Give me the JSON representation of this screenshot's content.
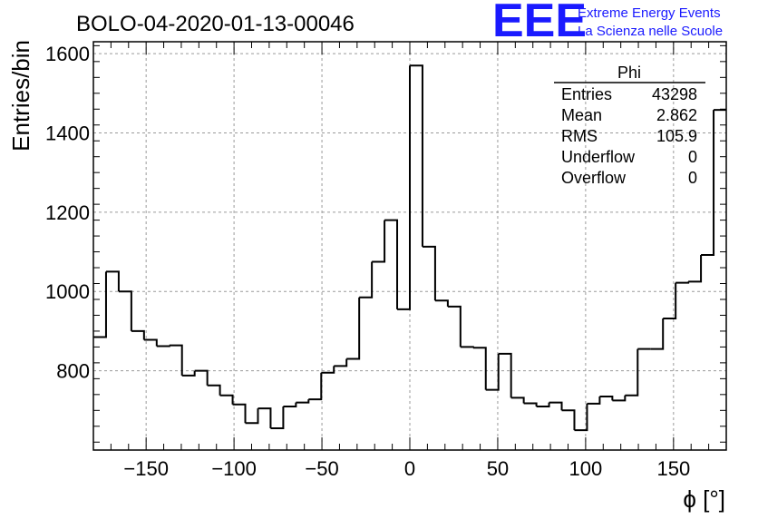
{
  "chart_data": {
    "type": "histogram",
    "title": "BOLO-04-2020-01-13-00046",
    "xlabel": "ϕ [°]",
    "ylabel": "Entries/bin",
    "xlim": [
      -180,
      180
    ],
    "ylim": [
      600,
      1630
    ],
    "bin_width": 7.2,
    "x_ticks": [
      -150,
      -100,
      -50,
      0,
      50,
      100,
      150
    ],
    "x_tick_labels": [
      "−150",
      "−100",
      "−50",
      "0",
      "50",
      "100",
      "150"
    ],
    "y_ticks": [
      800,
      1000,
      1200,
      1400,
      1600
    ],
    "y_tick_labels": [
      "800",
      "1000",
      "1200",
      "1400",
      "1600"
    ],
    "grid": true,
    "values": [
      885,
      1050,
      1000,
      900,
      878,
      862,
      864,
      788,
      800,
      763,
      738,
      715,
      668,
      705,
      655,
      710,
      720,
      728,
      795,
      812,
      830,
      985,
      1075,
      1180,
      955,
      1570,
      1113,
      977,
      962,
      860,
      858,
      752,
      843,
      732,
      718,
      710,
      720,
      700,
      650,
      717,
      735,
      725,
      738,
      855,
      855,
      932,
      1022,
      1025,
      1092,
      1458
    ]
  },
  "stats_box": {
    "name": "Phi",
    "rows": [
      {
        "label": "Entries",
        "value": "43298"
      },
      {
        "label": "Mean",
        "value": "2.862"
      },
      {
        "label": "RMS",
        "value": "105.9"
      },
      {
        "label": "Underflow",
        "value": "0"
      },
      {
        "label": "Overflow",
        "value": "0"
      }
    ]
  },
  "logo": {
    "mark": "EEE",
    "line1": "Extreme Energy Events",
    "line2": "La Scienza nelle Scuole",
    "color": "#1a1aff"
  }
}
